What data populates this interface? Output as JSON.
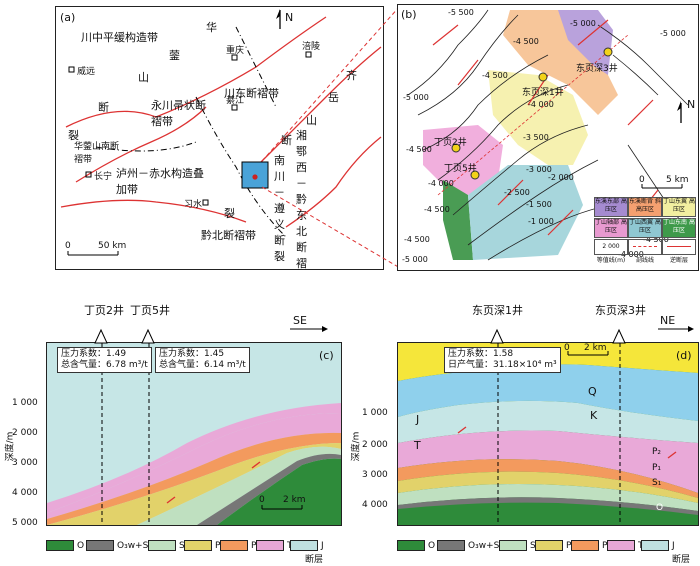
{
  "panel_a": {
    "label": "(a)",
    "north": "N",
    "regions": [
      "川中平缓构造带",
      "永川帚状断褶带",
      "川东断褶带",
      "泸州－赤水构造叠加带",
      "黔北断褶带",
      "湘鄂西－黔东北断褶带",
      "华蓥山南断褶带",
      "南川－遵义断裂"
    ],
    "faults": [
      "华",
      "蓥",
      "山",
      "断",
      "裂",
      "齐",
      "岳",
      "山",
      "断",
      "裂"
    ],
    "cities": [
      "威远",
      "重庆",
      "涪陵",
      "綦江",
      "长宁",
      "习水"
    ],
    "scale": {
      "start": "0",
      "end": "50 km"
    }
  },
  "panel_b": {
    "label": "(b)",
    "north": "N",
    "contours": [
      "-5 500",
      "-5 000",
      "-4 500",
      "-4 000",
      "-3 500",
      "-3 000",
      "-2 500",
      "-2 000",
      "-1 500",
      "-1 000",
      "-4 500",
      "-5 000",
      "-4 500",
      "-5 000",
      "-4 500",
      "-4 000",
      "-4 500",
      "-5 000",
      "-4 500",
      "-4 000",
      "-3 500",
      "-4 000",
      "-4 500"
    ],
    "wells": [
      "东页深1井",
      "东页深3井",
      "丁页2井",
      "丁页5井"
    ],
    "scale": {
      "start": "0",
      "end": "5 km"
    },
    "legend": [
      {
        "text": "东溪东部\n高压区",
        "color": "#a58bd0"
      },
      {
        "text": "东溪断背\n斜高压区",
        "color": "#f4a070"
      },
      {
        "text": "丁山东翼\n高压区",
        "color": "#f2efa0"
      },
      {
        "text": "丁山轴部\n高压区",
        "color": "#e89ad0"
      },
      {
        "text": "丁山西翼\n高压区",
        "color": "#8fc8d2"
      },
      {
        "text": "丁山东南\n高压区",
        "color": "#3e9a4a"
      },
      {
        "text": "等值线(m)",
        "color": "#fff"
      },
      {
        "text": "剖线线",
        "color": "#fff"
      },
      {
        "text": "逆断层",
        "color": "#fff"
      }
    ],
    "contour_sample": "2 000"
  },
  "panel_c": {
    "label": "(c)",
    "direction": "SE",
    "wells": [
      "丁页2井",
      "丁页5井"
    ],
    "box1": {
      "p": "压力系数：1.49",
      "g": "总含气量：6.78 m³/t"
    },
    "box2": {
      "p": "压力系数：1.45",
      "g": "总含气量：6.14 m³/t"
    },
    "depth_ticks": [
      "1 000",
      "2 000",
      "3 000",
      "4 000",
      "5 000"
    ],
    "ylabel": "深度/m",
    "scale": {
      "start": "0",
      "end": "2 km"
    }
  },
  "panel_d": {
    "label": "(d)",
    "direction": "NE",
    "wells": [
      "东页深1井",
      "东页深3井"
    ],
    "box": {
      "p": "压力系数：1.58",
      "g": "日产气量：31.18×10⁴ m³"
    },
    "depth_ticks": [
      "1 000",
      "2 000",
      "3 000",
      "4 000"
    ],
    "ylabel": "深度/m",
    "scale": {
      "start": "0",
      "end": "2 km"
    },
    "strata": [
      "Q",
      "K",
      "J",
      "T",
      "P₂",
      "P₁",
      "S₁",
      "O"
    ]
  },
  "legend_c": [
    {
      "text": "O",
      "color": "#2e8b3a"
    },
    {
      "text": "O₃w+S₁l",
      "color": "#777"
    },
    {
      "text": "S₁",
      "color": "#bfe0c0"
    },
    {
      "text": "P₁",
      "color": "#e2d26a"
    },
    {
      "text": "P₂",
      "color": "#f39a5e"
    },
    {
      "text": "T",
      "color": "#e7a7d6"
    },
    {
      "text": "J",
      "color": "#bfe0e0"
    },
    {
      "text": "断层",
      "color": "#fff"
    }
  ],
  "legend_d": [
    {
      "text": "O",
      "color": "#2e8b3a"
    },
    {
      "text": "O₃w+S₁l",
      "color": "#777"
    },
    {
      "text": "S₁",
      "color": "#bfe0c0"
    },
    {
      "text": "P₁",
      "color": "#e2d26a"
    },
    {
      "text": "P₂",
      "color": "#f39a5e"
    },
    {
      "text": "T",
      "color": "#e7a7d6"
    },
    {
      "text": "J",
      "color": "#bfe0e0"
    },
    {
      "text": "断层",
      "color": "#fff"
    }
  ]
}
